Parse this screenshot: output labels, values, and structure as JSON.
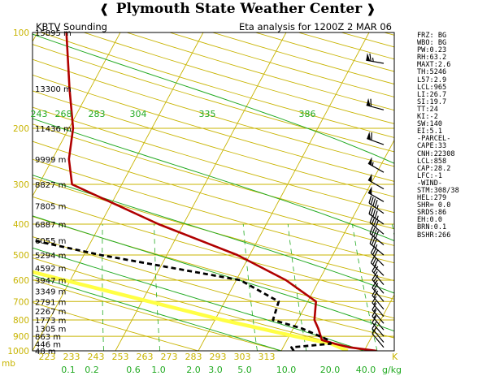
{
  "banner": {
    "title": "Plymouth State Weather Center",
    "flag_left": "❰",
    "flag_right": "❱"
  },
  "header": {
    "station": "KBTV Sounding",
    "analysis": "Eta analysis for 1200Z  2 MAR 06"
  },
  "colors": {
    "background": "#ffffff",
    "isotherm": "#c8b400",
    "dry_adiabat": "#c8b400",
    "moist_adiabat": "#22aa22",
    "mixing_ratio": "#22aa22",
    "temperature": "#b00000",
    "dewpoint": "#000000",
    "parcel": "#ffff44",
    "axis_text": "#c8b400",
    "theta_text": "#22aa22"
  },
  "chart_data": {
    "type": "line",
    "chart_kind": "skew-T log-P diagram",
    "y_axis": {
      "label": "mb",
      "scale": "log",
      "range": [
        1000,
        100
      ],
      "ticks": [
        100,
        200,
        300,
        400,
        500,
        600,
        700,
        800,
        900,
        1000
      ]
    },
    "x_axis": {
      "unit": "K",
      "ticks": [
        "223",
        "233",
        "243",
        "253",
        "263",
        "273",
        "283",
        "293",
        "303",
        "313"
      ]
    },
    "mixing_ratio_labels": [
      "0.1",
      "0.2",
      "0.6",
      "1.0",
      "2.0",
      "3.0",
      "5.0",
      "10.0",
      "20.0",
      "40.0"
    ],
    "mixing_ratio_unit": "g/kg",
    "theta_labels": [
      "243",
      "268",
      "283",
      "304",
      "335",
      "386"
    ],
    "height_labels": [
      {
        "p": 100,
        "text": "15895 m"
      },
      {
        "p": 150,
        "text": "13300 m"
      },
      {
        "p": 200,
        "text": "11436 m"
      },
      {
        "p": 250,
        "text": "9999 m"
      },
      {
        "p": 300,
        "text": "8827 m"
      },
      {
        "p": 350,
        "text": "7805 m"
      },
      {
        "p": 400,
        "text": "6887 m"
      },
      {
        "p": 450,
        "text": "6055 m"
      },
      {
        "p": 500,
        "text": "5294 m"
      },
      {
        "p": 550,
        "text": "4592 m"
      },
      {
        "p": 600,
        "text": "3947 m"
      },
      {
        "p": 650,
        "text": "3349 m"
      },
      {
        "p": 700,
        "text": "2791 m"
      },
      {
        "p": 750,
        "text": "2267 m"
      },
      {
        "p": 800,
        "text": "1773 m"
      },
      {
        "p": 850,
        "text": "1305 m"
      },
      {
        "p": 900,
        "text": "863 m"
      },
      {
        "p": 950,
        "text": "446 m"
      },
      {
        "p": 1000,
        "text": "48 m"
      }
    ],
    "series": [
      {
        "id": "temperature",
        "points": [
          [
            1000,
            264.5
          ],
          [
            975,
            261
          ],
          [
            950,
            259
          ],
          [
            925,
            257.2
          ],
          [
            850,
            256
          ],
          [
            800,
            255
          ],
          [
            700,
            254
          ],
          [
            600,
            249
          ],
          [
            500,
            241.5
          ],
          [
            400,
            230
          ],
          [
            300,
            217
          ],
          [
            250,
            215
          ],
          [
            200,
            213.5
          ],
          [
            150,
            210.5
          ],
          [
            100,
            206.5
          ]
        ]
      },
      {
        "id": "dewpoint",
        "points": [
          [
            1000,
            254.5
          ],
          [
            975,
            254
          ],
          [
            950,
            258.5
          ],
          [
            925,
            258
          ],
          [
            850,
            254
          ],
          [
            800,
            250
          ],
          [
            700,
            249.5
          ],
          [
            600,
            243.5
          ],
          [
            500,
            225
          ],
          [
            450,
            216
          ],
          [
            400,
            208
          ],
          [
            350,
            202
          ],
          [
            300,
            197
          ],
          [
            250,
            184
          ],
          [
            200,
            180
          ],
          [
            150,
            179
          ],
          [
            100,
            181
          ]
        ]
      },
      {
        "id": "parcel",
        "points": [
          [
            1000,
            261
          ],
          [
            950,
            258.6
          ],
          [
            900,
            253.7
          ],
          [
            800,
            243.9
          ],
          [
            700,
            233.9
          ],
          [
            600,
            222.3
          ],
          [
            500,
            208.9
          ],
          [
            400,
            193.3
          ],
          [
            300,
            176.8
          ],
          [
            200,
            156.6
          ],
          [
            100,
            129.3
          ]
        ]
      }
    ],
    "wind_barbs": [
      {
        "p": 125,
        "dir": 280,
        "spd": 65
      },
      {
        "p": 175,
        "dir": 285,
        "spd": 60
      },
      {
        "p": 225,
        "dir": 290,
        "spd": 60
      },
      {
        "p": 275,
        "dir": 300,
        "spd": 55
      },
      {
        "p": 310,
        "dir": 300,
        "spd": 50
      },
      {
        "p": 340,
        "dir": 300,
        "spd": 50
      },
      {
        "p": 370,
        "dir": 305,
        "spd": 45
      },
      {
        "p": 400,
        "dir": 305,
        "spd": 45
      },
      {
        "p": 430,
        "dir": 310,
        "spd": 40
      },
      {
        "p": 465,
        "dir": 310,
        "spd": 40
      },
      {
        "p": 500,
        "dir": 310,
        "spd": 35
      },
      {
        "p": 540,
        "dir": 315,
        "spd": 30
      },
      {
        "p": 580,
        "dir": 315,
        "spd": 30
      },
      {
        "p": 620,
        "dir": 320,
        "spd": 25
      },
      {
        "p": 660,
        "dir": 320,
        "spd": 25
      },
      {
        "p": 700,
        "dir": 320,
        "spd": 20
      },
      {
        "p": 740,
        "dir": 320,
        "spd": 20
      },
      {
        "p": 780,
        "dir": 320,
        "spd": 15
      },
      {
        "p": 820,
        "dir": 320,
        "spd": 15
      },
      {
        "p": 860,
        "dir": 320,
        "spd": 15
      },
      {
        "p": 900,
        "dir": 320,
        "spd": 10
      },
      {
        "p": 940,
        "dir": 320,
        "spd": 10
      },
      {
        "p": 975,
        "dir": 320,
        "spd": 10
      }
    ]
  },
  "stats": [
    "FRZ: BG",
    "WBO: BG",
    "PW:0.23",
    "RH:63.2",
    "MAXT:2.6",
    "TH:5246",
    "L57:2.9",
    "LCL:965",
    "LI:26.7",
    "SI:19.7",
    "TT:24",
    "KI:-2",
    "SW:140",
    "EI:5.1",
    "-PARCEL-",
    "CAPE:33",
    "CNH:22308",
    "LCL:858",
    "CAP:28.2",
    "LFC:-1",
    "-WIND-",
    "STM:308/38",
    "HEL:279",
    "SHR= 0.0",
    "SRDS:86",
    "EH:0.0",
    "BRN:0.1",
    "BSHR:266"
  ]
}
